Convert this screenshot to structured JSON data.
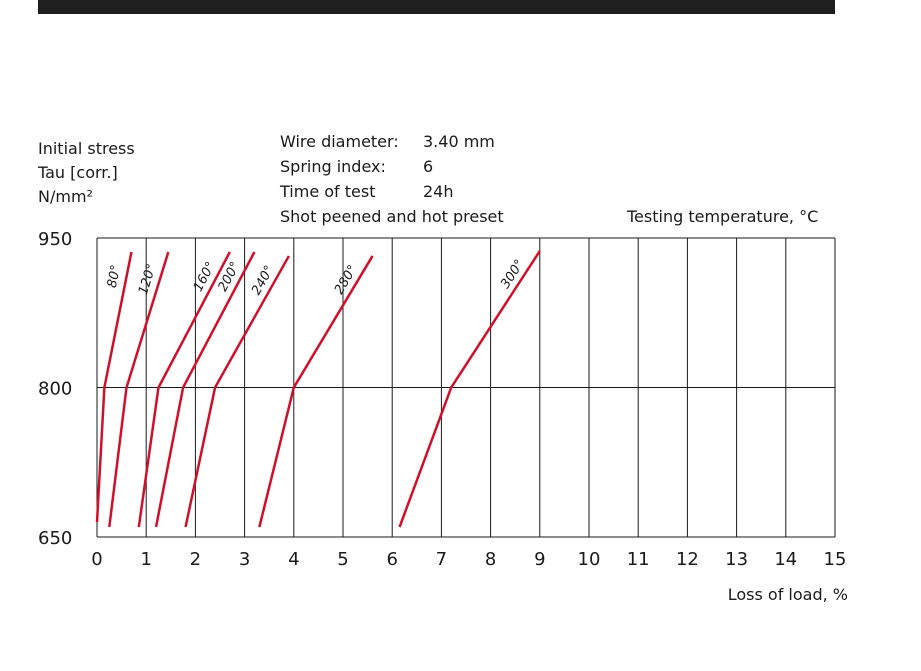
{
  "colors": {
    "curve": "#d0102a",
    "grid": "#1a1a1a",
    "bar": "#1f1f1f"
  },
  "header": {
    "ylabel_lines": [
      "Initial stress",
      "Tau [corr.]",
      "N/mm²"
    ],
    "info": [
      {
        "label": "Wire diameter:",
        "value": "3.40 mm"
      },
      {
        "label": "Spring index:",
        "value": "6"
      },
      {
        "label": "Time of test",
        "value": "24h"
      }
    ],
    "treatment": "Shot peened and hot preset",
    "legend_title": "Testing temperature, °C"
  },
  "chart_data": {
    "type": "line",
    "xlabel": "Loss of load, %",
    "ylabel": "Initial stress Tau [corr.] N/mm²",
    "xlim": [
      0,
      15
    ],
    "ylim": [
      650,
      950
    ],
    "x_ticks": [
      0,
      1,
      2,
      3,
      4,
      5,
      6,
      7,
      8,
      9,
      10,
      11,
      12,
      13,
      14,
      15
    ],
    "y_ticks": [
      650,
      800,
      950
    ],
    "grid": true,
    "series": [
      {
        "name": "80°",
        "points": [
          [
            0.0,
            665
          ],
          [
            0.15,
            800
          ],
          [
            0.7,
            936
          ]
        ]
      },
      {
        "name": "120°",
        "points": [
          [
            0.25,
            660
          ],
          [
            0.6,
            800
          ],
          [
            1.45,
            936
          ]
        ]
      },
      {
        "name": "160°",
        "points": [
          [
            0.85,
            660
          ],
          [
            1.25,
            800
          ],
          [
            2.7,
            936
          ]
        ]
      },
      {
        "name": "200°",
        "points": [
          [
            1.2,
            660
          ],
          [
            1.75,
            800
          ],
          [
            3.2,
            936
          ]
        ]
      },
      {
        "name": "240°",
        "points": [
          [
            1.8,
            660
          ],
          [
            2.4,
            800
          ],
          [
            3.9,
            932
          ]
        ]
      },
      {
        "name": "280°",
        "points": [
          [
            3.3,
            660
          ],
          [
            4.0,
            800
          ],
          [
            5.6,
            932
          ]
        ]
      },
      {
        "name": "300°",
        "points": [
          [
            6.15,
            660
          ],
          [
            7.2,
            800
          ],
          [
            9.0,
            937
          ]
        ]
      }
    ]
  }
}
